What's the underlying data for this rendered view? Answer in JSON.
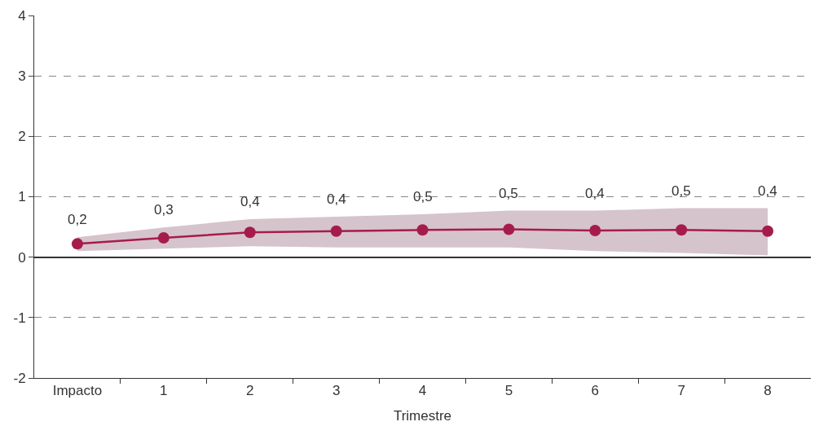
{
  "chart_data": {
    "type": "line",
    "xlabel": "Trimestre",
    "categories": [
      "Impacto",
      "1",
      "2",
      "3",
      "4",
      "5",
      "6",
      "7",
      "8"
    ],
    "series": [
      {
        "color": "#a51c4c",
        "values": [
          0.22,
          0.32,
          0.41,
          0.43,
          0.45,
          0.46,
          0.44,
          0.45,
          0.43
        ],
        "lower": [
          0.1,
          0.14,
          0.18,
          0.16,
          0.16,
          0.16,
          0.1,
          0.07,
          0.03
        ],
        "upper": [
          0.33,
          0.49,
          0.63,
          0.67,
          0.71,
          0.77,
          0.77,
          0.81,
          0.81
        ],
        "value_labels": [
          "0,2",
          "0,3",
          "0,4",
          "0,4",
          "0,5",
          "0,5",
          "0,4",
          "0,5",
          "0,4"
        ]
      }
    ],
    "ylim": [
      -2,
      4
    ],
    "yticks": [
      -2,
      -1,
      0,
      1,
      2,
      3,
      4
    ],
    "grid": "y",
    "marker": "circle",
    "line_style": "solid"
  }
}
